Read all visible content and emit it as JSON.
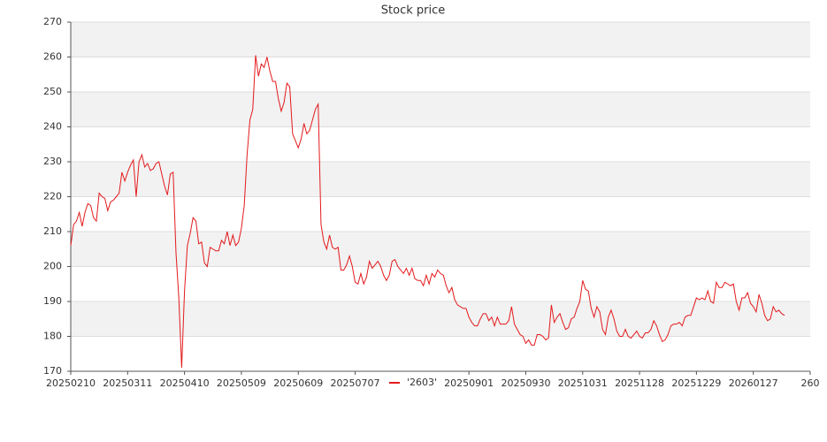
{
  "chart_data": {
    "type": "line",
    "title": "Stock price",
    "xlim": [
      0,
      260
    ],
    "xticks": [
      {
        "value": 0,
        "label": "20250210"
      },
      {
        "value": 20,
        "label": "20250311"
      },
      {
        "value": 40,
        "label": "20250410"
      },
      {
        "value": 60,
        "label": "20250509"
      },
      {
        "value": 80,
        "label": "20250609"
      },
      {
        "value": 100,
        "label": "20250707"
      },
      {
        "value": 140,
        "label": "20250901"
      },
      {
        "value": 160,
        "label": "20250930"
      },
      {
        "value": 180,
        "label": "20251031"
      },
      {
        "value": 200,
        "label": "20251128"
      },
      {
        "value": 220,
        "label": "20251229"
      },
      {
        "value": 240,
        "label": "20260127"
      },
      260
    ],
    "ylim": [
      170,
      270
    ],
    "yticks": [
      170,
      180,
      190,
      200,
      210,
      220,
      230,
      240,
      250,
      260,
      270
    ],
    "grid": true,
    "series": [
      {
        "name": "'2603'",
        "color": "#e31a1c",
        "values": [
          206,
          212,
          213,
          215.5,
          211.5,
          215.5,
          218,
          217.5,
          214,
          213,
          221,
          220,
          219.5,
          216,
          218.5,
          219,
          220,
          221,
          227,
          224.5,
          227,
          229,
          230.5,
          220,
          230,
          232,
          228.5,
          229.5,
          227.5,
          228,
          229.5,
          230,
          226.5,
          223,
          220.5,
          226.5,
          227,
          204,
          191,
          171,
          193,
          206,
          209.5,
          214,
          213,
          206.5,
          207,
          201,
          200,
          205.5,
          205,
          204.5,
          204.5,
          207.5,
          206.5,
          210,
          206,
          209,
          206,
          207,
          211,
          217.5,
          232,
          242,
          245,
          260.5,
          254.5,
          258,
          257,
          260,
          256,
          253,
          253,
          248,
          244.5,
          247,
          252.5,
          251.5,
          238,
          236,
          234,
          236.5,
          241,
          238,
          239,
          242,
          245,
          246.5,
          212,
          207,
          205,
          209,
          205.5,
          205,
          205.5,
          199,
          199,
          200.5,
          203,
          200,
          195.5,
          195,
          198,
          195,
          197,
          201.5,
          199.5,
          200.5,
          201.5,
          200,
          197.5,
          196,
          197.5,
          201.5,
          202,
          200,
          199,
          198,
          199.5,
          197.5,
          199.5,
          196.5,
          196,
          196,
          194.5,
          197.5,
          195,
          198,
          197,
          199,
          198,
          197.5,
          194.5,
          192.5,
          194,
          190.5,
          189,
          188.5,
          188,
          188,
          185.5,
          184,
          183,
          183,
          185,
          186.5,
          186.5,
          184.5,
          185.5,
          183,
          185.5,
          183.5,
          183.5,
          183.5,
          184.5,
          188.5,
          183.5,
          182,
          180.5,
          180,
          178,
          179,
          177.5,
          177.5,
          180.5,
          180.5,
          180,
          179,
          179.5,
          189,
          184,
          185.5,
          186.5,
          184,
          182,
          182.5,
          185,
          185.5,
          188,
          190,
          196,
          193.5,
          193,
          188,
          185.5,
          188.5,
          187,
          182,
          180.5,
          185.5,
          187.5,
          185,
          181.5,
          180,
          180,
          182,
          180,
          179.5,
          180.5,
          181.5,
          180,
          179.5,
          181,
          181,
          182,
          184.5,
          183,
          180.5,
          178.5,
          179,
          180.5,
          183,
          183.5,
          183.5,
          184,
          183,
          185.5,
          186,
          186,
          188.5,
          191,
          190.5,
          191,
          190.5,
          193,
          190,
          189.5,
          195.5,
          194,
          194,
          195.5,
          195,
          194.5,
          195,
          190,
          187.5,
          191,
          191,
          192.5,
          189.5,
          188.5,
          187,
          192,
          189.5,
          186,
          184.5,
          185,
          188.5,
          187,
          187.5,
          186.5,
          186
        ]
      }
    ],
    "legend": "bottom-center"
  }
}
